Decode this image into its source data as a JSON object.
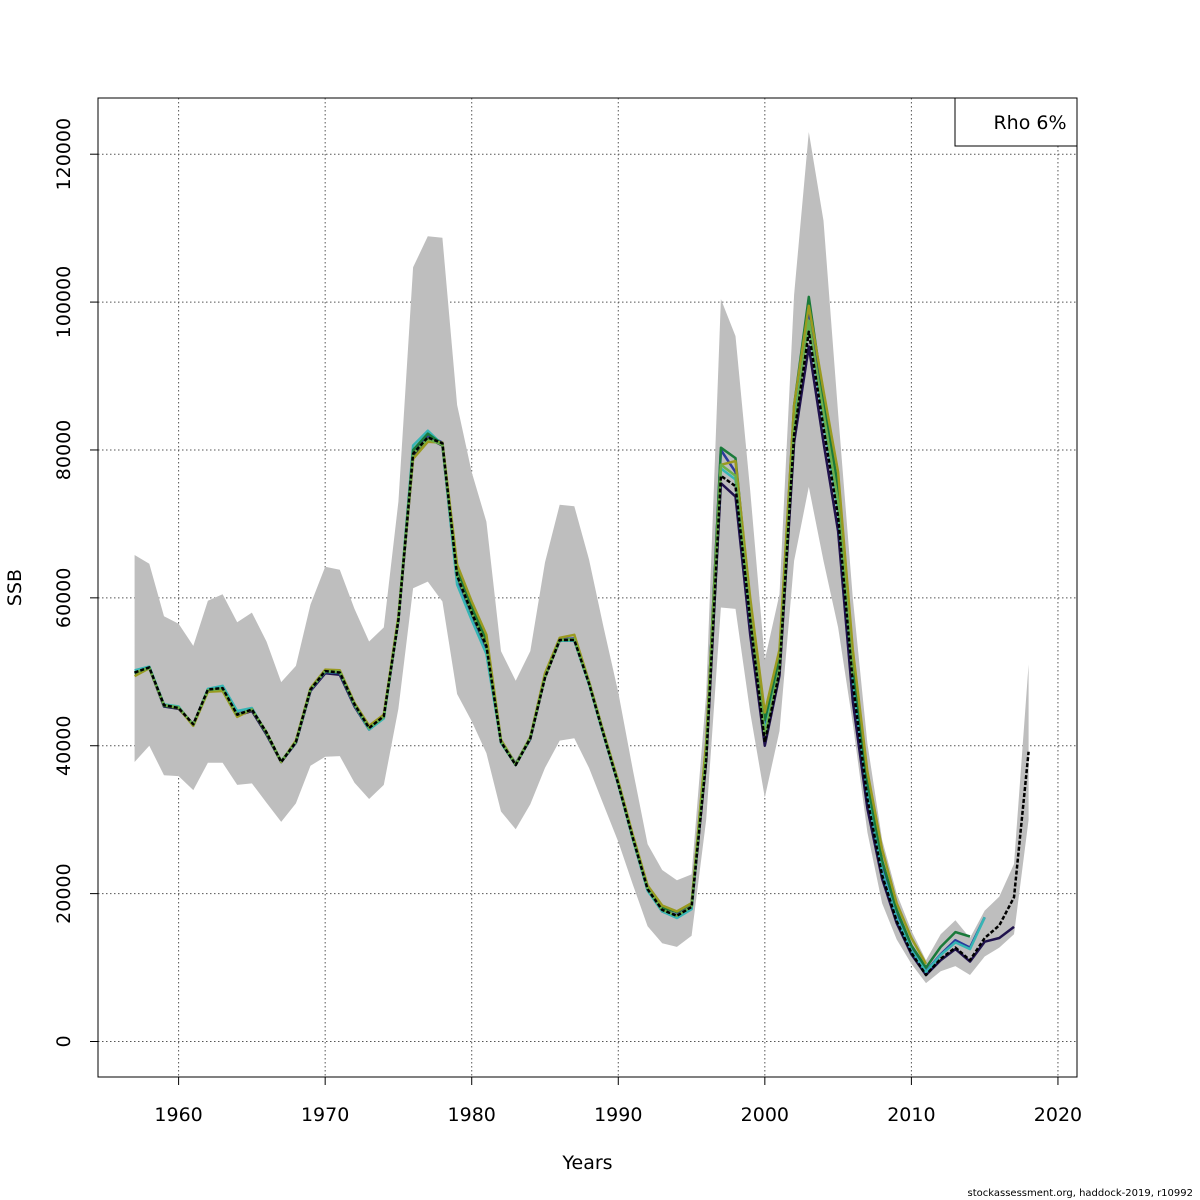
{
  "chart_data": {
    "type": "line",
    "xlabel": "Years",
    "ylabel": "SSB",
    "xlim": [
      1954.5,
      2021.3
    ],
    "ylim": [
      -4800,
      127600
    ],
    "x_ticks": [
      1960,
      1970,
      1980,
      1990,
      2000,
      2010,
      2020
    ],
    "y_ticks": [
      0,
      20000,
      40000,
      60000,
      80000,
      100000,
      120000
    ],
    "grid": true,
    "legend": {
      "position": "top-right",
      "text": "Rho 6%"
    },
    "credit": "stockassessment.org, haddock-2019, r10992",
    "colors": {
      "band": "#bebebe",
      "grid": "#555555",
      "retro": [
        "#20124d",
        "#2a3a9b",
        "#36b5b5",
        "#1a7a3a",
        "#9a9a20",
        "#6ab04c"
      ],
      "main": "#000000"
    },
    "band": {
      "x": [
        1957,
        1958,
        1959,
        1960,
        1961,
        1962,
        1963,
        1964,
        1965,
        1966,
        1967,
        1968,
        1969,
        1970,
        1971,
        1972,
        1973,
        1974,
        1975,
        1976,
        1977,
        1978,
        1979,
        1980,
        1981,
        1982,
        1983,
        1984,
        1985,
        1986,
        1987,
        1988,
        1989,
        1990,
        1991,
        1992,
        1993,
        1994,
        1995,
        1996,
        1997,
        1998,
        1999,
        2000,
        2001,
        2002,
        2003,
        2004,
        2005,
        2006,
        2007,
        2008,
        2009,
        2010,
        2011,
        2012,
        2013,
        2014,
        2015,
        2016,
        2017,
        2018
      ],
      "upper": [
        65800,
        64600,
        57500,
        56500,
        53500,
        59600,
        60500,
        56700,
        58000,
        54100,
        48600,
        50800,
        59100,
        64200,
        63800,
        58500,
        54100,
        56000,
        73000,
        104700,
        108900,
        108700,
        86100,
        77000,
        70300,
        52800,
        48800,
        52800,
        64800,
        72600,
        72400,
        65200,
        56000,
        47200,
        36700,
        26700,
        23200,
        21800,
        22600,
        47000,
        100400,
        95400,
        74500,
        51600,
        60500,
        101000,
        123000,
        111000,
        85000,
        60000,
        40300,
        27300,
        20000,
        15000,
        11000,
        14500,
        16400,
        14000,
        17700,
        19600,
        24000,
        51000
      ],
      "lower": [
        37800,
        40000,
        36000,
        35900,
        34000,
        37700,
        37700,
        34700,
        34900,
        32300,
        29700,
        32200,
        37300,
        38500,
        38600,
        35000,
        32800,
        34700,
        45000,
        61300,
        62200,
        59500,
        47000,
        43300,
        39000,
        31100,
        28700,
        32100,
        37000,
        40700,
        41000,
        37000,
        32000,
        27000,
        21200,
        15600,
        13300,
        12800,
        14300,
        30000,
        58700,
        58500,
        44500,
        33000,
        42000,
        65000,
        75000,
        65000,
        56000,
        43000,
        28300,
        18700,
        13800,
        10500,
        7900,
        9500,
        10200,
        9000,
        11500,
        12700,
        14500,
        30000
      ]
    },
    "main_series": {
      "x": [
        1957,
        1958,
        1959,
        1960,
        1961,
        1962,
        1963,
        1964,
        1965,
        1966,
        1967,
        1968,
        1969,
        1970,
        1971,
        1972,
        1973,
        1974,
        1975,
        1976,
        1977,
        1978,
        1979,
        1980,
        1981,
        1982,
        1983,
        1984,
        1985,
        1986,
        1987,
        1988,
        1989,
        1990,
        1991,
        1992,
        1993,
        1994,
        1995,
        1996,
        1997,
        1998,
        1999,
        2000,
        2001,
        2002,
        2003,
        2004,
        2005,
        2006,
        2007,
        2008,
        2009,
        2010,
        2011,
        2012,
        2013,
        2014,
        2015,
        2016,
        2017,
        2018
      ],
      "values": [
        49900,
        50600,
        45500,
        45100,
        42900,
        47600,
        47800,
        44200,
        44900,
        41800,
        37800,
        40500,
        47600,
        50100,
        49900,
        45600,
        42400,
        44000,
        57000,
        79500,
        81700,
        80900,
        63000,
        58000,
        53500,
        40500,
        37400,
        41000,
        49200,
        54300,
        54300,
        48400,
        41500,
        34800,
        27500,
        20600,
        17800,
        17000,
        18200,
        38000,
        76500,
        75100,
        57000,
        40500,
        50000,
        82000,
        96000,
        83000,
        71000,
        48500,
        32800,
        22500,
        16300,
        12000,
        9000,
        11200,
        12700,
        11000,
        14000,
        15700,
        19500,
        39200
      ]
    },
    "series": [
      {
        "values": [
          49800,
          50500,
          45300,
          45000,
          42900,
          47400,
          47600,
          44100,
          44700,
          41500,
          37800,
          40400,
          47400,
          49800,
          49600,
          45300,
          42200,
          43800,
          57000,
          79000,
          81600,
          80600,
          62200,
          57500,
          53000,
          40600,
          37500,
          40900,
          49300,
          54200,
          54300,
          48500,
          41600,
          34900,
          27400,
          20500,
          17600,
          16800,
          18000,
          38000,
          75500,
          73700,
          55000,
          40000,
          49500,
          81000,
          94000,
          81000,
          69000,
          46000,
          31500,
          22000,
          16000,
          11800,
          9000,
          11000,
          12500,
          10800,
          13500,
          14000,
          15500
        ]
      },
      {
        "values": [
          49900,
          50600,
          45400,
          45100,
          42900,
          47600,
          47700,
          44300,
          44900,
          41700,
          37800,
          40400,
          47500,
          50000,
          49800,
          45500,
          42300,
          43900,
          57000,
          79500,
          82000,
          81000,
          62500,
          58000,
          53300,
          40600,
          37600,
          41100,
          49400,
          54400,
          54500,
          48600,
          41700,
          35000,
          27600,
          20700,
          17700,
          17100,
          18400,
          40000,
          80000,
          77000,
          57500,
          42500,
          51500,
          85000,
          99000,
          86000,
          74000,
          50000,
          34000,
          23500,
          17000,
          12500,
          9500,
          11800,
          13700,
          12700,
          16800
        ]
      },
      {
        "values": [
          50200,
          50700,
          45600,
          45300,
          42700,
          47700,
          48100,
          44700,
          45100,
          41700,
          37900,
          40500,
          47700,
          50000,
          49900,
          45500,
          42200,
          43700,
          57200,
          80600,
          82600,
          80700,
          61800,
          57000,
          52400,
          40400,
          37400,
          41000,
          49400,
          54200,
          54200,
          48300,
          41400,
          34700,
          27300,
          20400,
          17600,
          16700,
          17900,
          39500,
          77500,
          76000,
          57000,
          42000,
          50500,
          84000,
          97000,
          84000,
          72000,
          49000,
          33500,
          23000,
          16700,
          12300,
          9400,
          11700,
          13400,
          12500,
          16800
        ]
      },
      {
        "values": [
          49800,
          50600,
          45400,
          45100,
          42800,
          47500,
          47700,
          44100,
          44900,
          41700,
          37800,
          40500,
          47600,
          50100,
          49900,
          45600,
          42400,
          44000,
          57300,
          80000,
          82200,
          80800,
          64000,
          58800,
          54300,
          40500,
          37400,
          41100,
          49500,
          54300,
          54400,
          48600,
          41600,
          34900,
          27600,
          20900,
          18100,
          17500,
          18700,
          40000,
          80300,
          78900,
          59000,
          43500,
          52000,
          86000,
          100700,
          87000,
          75000,
          51000,
          35000,
          24500,
          17800,
          13000,
          10000,
          12800,
          14800,
          14200
        ]
      },
      {
        "values": [
          49400,
          50500,
          45500,
          45100,
          42700,
          47300,
          47400,
          43900,
          44900,
          41800,
          37800,
          40700,
          47800,
          50300,
          50200,
          45800,
          42700,
          44200,
          57500,
          78800,
          81100,
          81000,
          64500,
          59500,
          55000,
          40800,
          37500,
          41200,
          49800,
          54600,
          55000,
          48700,
          41800,
          35200,
          27900,
          21100,
          18400,
          17600,
          18700,
          40500,
          78000,
          78500,
          60000,
          44500,
          53000,
          86000,
          99500,
          88000,
          77000,
          53000,
          36500,
          26000,
          18700,
          14000,
          10500
        ]
      },
      {
        "values": [
          49900,
          50500,
          45500,
          45200,
          42900,
          47500,
          47700,
          44200,
          44900,
          41800,
          37900,
          40500,
          47600,
          50100,
          50000,
          45600,
          42400,
          43900,
          57100,
          79500,
          81500,
          80700,
          63000,
          58000,
          53500,
          40600,
          37500,
          41100,
          49300,
          54300,
          54400,
          48500,
          41600,
          34900,
          27500,
          20700,
          17800,
          17000,
          18300,
          39000,
          78000,
          76500,
          57500,
          41500,
          50500,
          83000,
          97500,
          85000,
          73000,
          49500
        ]
      }
    ]
  }
}
